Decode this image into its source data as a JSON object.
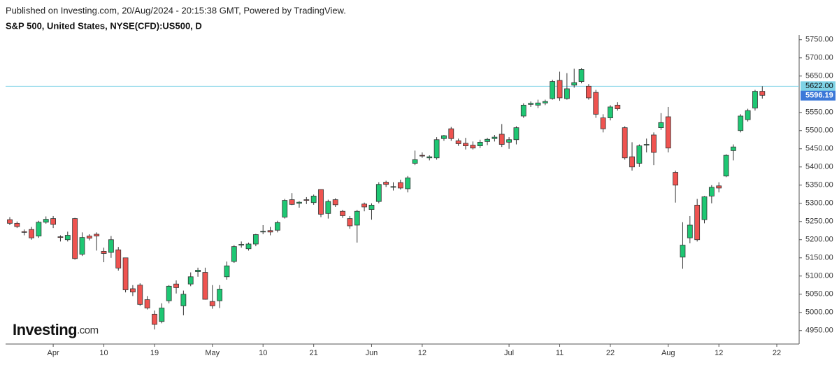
{
  "chart_data": {
    "type": "candlestick",
    "header": "Published on Investing.com, 20/Aug/2024 - 20:15:38 GMT, Powered by TradingView.",
    "title": "S&P 500, United States, NYSE(CFD):US500, D",
    "logo": {
      "name": "Investing",
      "suffix": ".com"
    },
    "up_color": "#1ec773",
    "down_color": "#ef5350",
    "categories": [
      null,
      null,
      null,
      null,
      null,
      null,
      "Apr",
      null,
      null,
      null,
      null,
      null,
      null,
      "10",
      null,
      null,
      null,
      null,
      null,
      null,
      "19",
      null,
      null,
      null,
      null,
      null,
      null,
      null,
      "May",
      null,
      null,
      null,
      null,
      null,
      null,
      "10",
      null,
      null,
      null,
      null,
      null,
      null,
      "21",
      null,
      null,
      null,
      null,
      null,
      null,
      null,
      "Jun",
      null,
      null,
      null,
      null,
      null,
      null,
      "12",
      null,
      null,
      null,
      null,
      null,
      null,
      null,
      null,
      null,
      null,
      null,
      "Jul",
      null,
      null,
      null,
      null,
      null,
      null,
      "11",
      null,
      null,
      null,
      null,
      null,
      null,
      "22",
      null,
      null,
      null,
      null,
      null,
      null,
      null,
      "Aug",
      null,
      null,
      null,
      null,
      null,
      null,
      "12",
      null,
      null,
      null,
      null,
      null,
      null,
      null,
      "22"
    ],
    "ohlc": [
      [
        5255,
        5262,
        5240,
        5245
      ],
      [
        5245,
        5250,
        5232,
        5236
      ],
      [
        5222,
        5228,
        5212,
        5220
      ],
      [
        5228,
        5235,
        5200,
        5205
      ],
      [
        5210,
        5252,
        5205,
        5248
      ],
      [
        5248,
        5264,
        5244,
        5256
      ],
      [
        5258,
        5265,
        5232,
        5242
      ],
      [
        5208,
        5212,
        5195,
        5206
      ],
      [
        5200,
        5222,
        5195,
        5212
      ],
      [
        5258,
        5260,
        5145,
        5148
      ],
      [
        5160,
        5220,
        5155,
        5206
      ],
      [
        5210,
        5215,
        5198,
        5204
      ],
      [
        5215,
        5220,
        5170,
        5210
      ],
      [
        5168,
        5178,
        5138,
        5162
      ],
      [
        5165,
        5210,
        5150,
        5200
      ],
      [
        5172,
        5180,
        5115,
        5122
      ],
      [
        5150,
        5150,
        5055,
        5062
      ],
      [
        5065,
        5075,
        5045,
        5056
      ],
      [
        5075,
        5080,
        5018,
        5022
      ],
      [
        5035,
        5045,
        5008,
        5012
      ],
      [
        4995,
        5005,
        4953,
        4967
      ],
      [
        4975,
        5025,
        4970,
        5012
      ],
      [
        5032,
        5075,
        5025,
        5072
      ],
      [
        5078,
        5088,
        5052,
        5068
      ],
      [
        5018,
        5060,
        4992,
        5050
      ],
      [
        5078,
        5110,
        5072,
        5098
      ],
      [
        5112,
        5123,
        5098,
        5116
      ],
      [
        5110,
        5123,
        5035,
        5036
      ],
      [
        5030,
        5075,
        5010,
        5018
      ],
      [
        5032,
        5075,
        5012,
        5064
      ],
      [
        5098,
        5140,
        5090,
        5128
      ],
      [
        5140,
        5185,
        5136,
        5181
      ],
      [
        5185,
        5195,
        5178,
        5187
      ],
      [
        5175,
        5192,
        5170,
        5188
      ],
      [
        5188,
        5216,
        5182,
        5214
      ],
      [
        5222,
        5240,
        5215,
        5223
      ],
      [
        5225,
        5235,
        5212,
        5221
      ],
      [
        5226,
        5252,
        5220,
        5247
      ],
      [
        5262,
        5312,
        5258,
        5308
      ],
      [
        5310,
        5328,
        5295,
        5297
      ],
      [
        5300,
        5306,
        5288,
        5303
      ],
      [
        5310,
        5317,
        5298,
        5308
      ],
      [
        5302,
        5324,
        5296,
        5320
      ],
      [
        5338,
        5338,
        5262,
        5270
      ],
      [
        5272,
        5310,
        5258,
        5305
      ],
      [
        5310,
        5314,
        5290,
        5296
      ],
      [
        5278,
        5282,
        5260,
        5266
      ],
      [
        5258,
        5265,
        5230,
        5238
      ],
      [
        5240,
        5282,
        5192,
        5278
      ],
      [
        5298,
        5302,
        5278,
        5290
      ],
      [
        5283,
        5300,
        5255,
        5295
      ],
      [
        5305,
        5358,
        5300,
        5352
      ],
      [
        5358,
        5362,
        5345,
        5352
      ],
      [
        5345,
        5358,
        5335,
        5346
      ],
      [
        5357,
        5365,
        5338,
        5342
      ],
      [
        5340,
        5375,
        5330,
        5370
      ],
      [
        5410,
        5445,
        5405,
        5420
      ],
      [
        5432,
        5440,
        5425,
        5430
      ],
      [
        5425,
        5432,
        5418,
        5428
      ],
      [
        5425,
        5482,
        5420,
        5475
      ],
      [
        5478,
        5488,
        5472,
        5486
      ],
      [
        5505,
        5510,
        5472,
        5478
      ],
      [
        5472,
        5478,
        5458,
        5464
      ],
      [
        5465,
        5480,
        5448,
        5458
      ],
      [
        5460,
        5470,
        5448,
        5452
      ],
      [
        5458,
        5475,
        5452,
        5468
      ],
      [
        5470,
        5480,
        5460,
        5476
      ],
      [
        5478,
        5488,
        5470,
        5482
      ],
      [
        5490,
        5518,
        5455,
        5462
      ],
      [
        5468,
        5482,
        5450,
        5475
      ],
      [
        5475,
        5512,
        5462,
        5508
      ],
      [
        5540,
        5575,
        5535,
        5570
      ],
      [
        5572,
        5580,
        5565,
        5575
      ],
      [
        5570,
        5585,
        5562,
        5576
      ],
      [
        5576,
        5585,
        5570,
        5580
      ],
      [
        5588,
        5640,
        5585,
        5635
      ],
      [
        5638,
        5662,
        5582,
        5590
      ],
      [
        5588,
        5658,
        5585,
        5615
      ],
      [
        5625,
        5670,
        5618,
        5632
      ],
      [
        5635,
        5672,
        5630,
        5668
      ],
      [
        5622,
        5628,
        5585,
        5590
      ],
      [
        5605,
        5612,
        5535,
        5545
      ],
      [
        5535,
        5545,
        5495,
        5505
      ],
      [
        5535,
        5570,
        5528,
        5565
      ],
      [
        5570,
        5578,
        5555,
        5560
      ],
      [
        5508,
        5512,
        5420,
        5425
      ],
      [
        5428,
        5468,
        5390,
        5400
      ],
      [
        5410,
        5462,
        5400,
        5458
      ],
      [
        5460,
        5478,
        5440,
        5462
      ],
      [
        5488,
        5495,
        5405,
        5440
      ],
      [
        5508,
        5548,
        5502,
        5522
      ],
      [
        5538,
        5565,
        5440,
        5452
      ],
      [
        5385,
        5390,
        5302,
        5350
      ],
      [
        5152,
        5248,
        5120,
        5185
      ],
      [
        5205,
        5265,
        5190,
        5240
      ],
      [
        5295,
        5312,
        5195,
        5200
      ],
      [
        5255,
        5320,
        5245,
        5318
      ],
      [
        5320,
        5350,
        5300,
        5344
      ],
      [
        5348,
        5358,
        5330,
        5342
      ],
      [
        5375,
        5435,
        5372,
        5432
      ],
      [
        5445,
        5462,
        5418,
        5455
      ],
      [
        5500,
        5545,
        5495,
        5540
      ],
      [
        5530,
        5560,
        5525,
        5555
      ],
      [
        5562,
        5612,
        5555,
        5608
      ],
      [
        5608,
        5622,
        5588,
        5597
      ],
      null,
      null
    ],
    "ylim": [
      4913,
      5763
    ],
    "yticks": [
      {
        "value": 4950,
        "label": "4950.00"
      },
      {
        "value": 5000,
        "label": "5000.00"
      },
      {
        "value": 5050,
        "label": "5050.00"
      },
      {
        "value": 5100,
        "label": "5100.00"
      },
      {
        "value": 5150,
        "label": "5150.00"
      },
      {
        "value": 5200,
        "label": "5200.00"
      },
      {
        "value": 5250,
        "label": "5250.00"
      },
      {
        "value": 5300,
        "label": "5300.00"
      },
      {
        "value": 5350,
        "label": "5350.00"
      },
      {
        "value": 5400,
        "label": "5400.00"
      },
      {
        "value": 5450,
        "label": "5450.00"
      },
      {
        "value": 5500,
        "label": "5500.00"
      },
      {
        "value": 5550,
        "label": "5550.00"
      },
      {
        "value": 5650,
        "label": "5650.00"
      },
      {
        "value": 5700,
        "label": "5700.00"
      },
      {
        "value": 5750,
        "label": "5750.00"
      }
    ],
    "price_line": {
      "value": 5622,
      "label": "5622.00",
      "color": "#7fd3e6"
    },
    "last_price": {
      "value": 5596.19,
      "label": "5596.19",
      "color": "#3c78d8"
    }
  }
}
